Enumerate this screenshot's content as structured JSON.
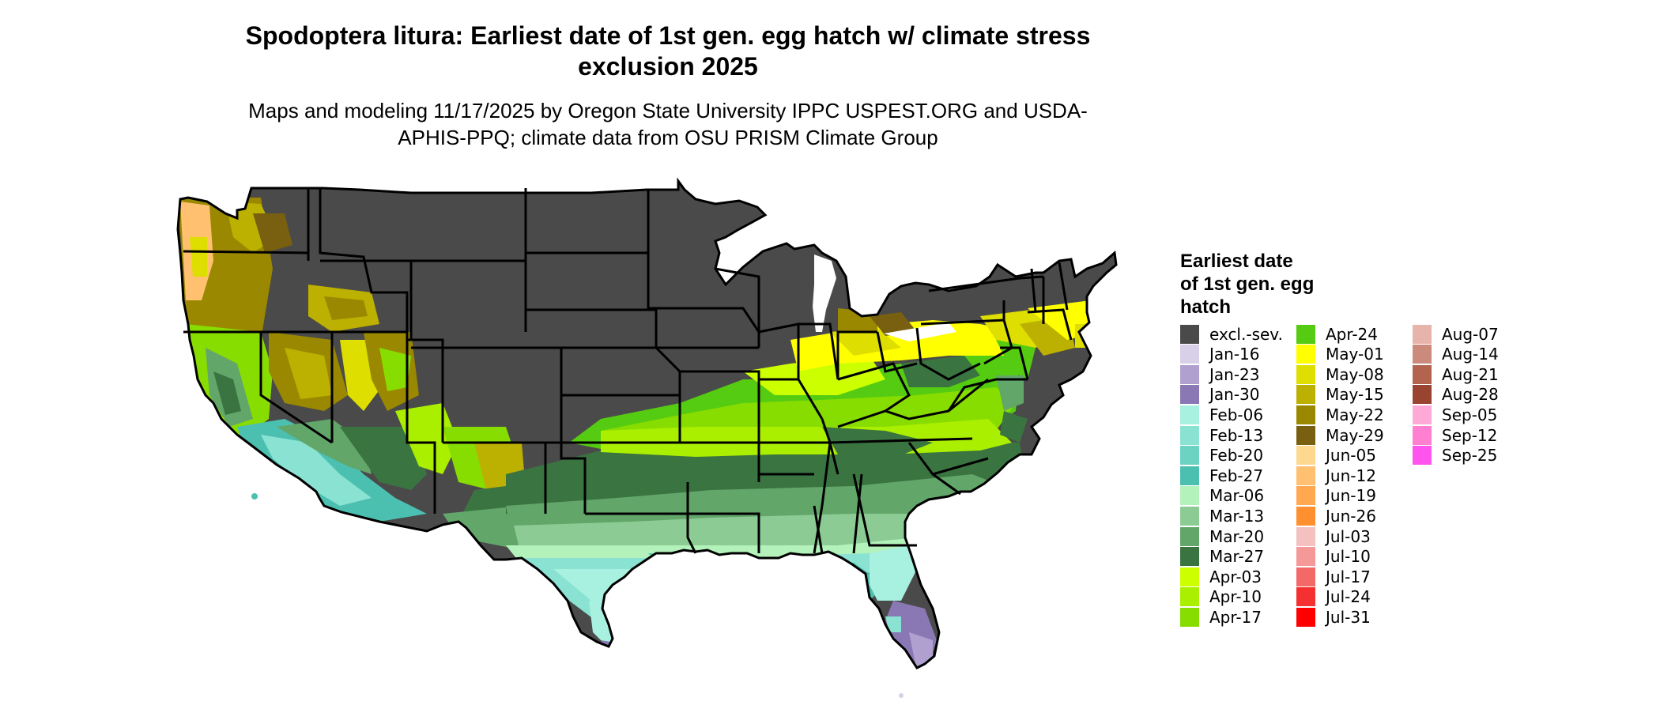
{
  "title": "Spodoptera litura: Earliest date of 1st gen. egg hatch w/ climate stress exclusion 2025",
  "subtitle": "Maps and modeling 11/17/2025 by Oregon State University IPPC USPEST.ORG and USDA-APHIS-PPQ; climate data from OSU PRISM Climate Group",
  "map": {
    "region": "Contiguous United States",
    "colors": {
      "state_border": "#000000",
      "excluded": "#4a4a4a"
    }
  },
  "legend": {
    "title": "Earliest date of 1st gen. egg hatch",
    "items": [
      {
        "label": "excl.-sev.",
        "color": "#4a4a4a"
      },
      {
        "label": "Jan-16",
        "color": "#d8d0e8"
      },
      {
        "label": "Jan-23",
        "color": "#b0a0d0"
      },
      {
        "label": "Jan-30",
        "color": "#8a78b4"
      },
      {
        "label": "Feb-06",
        "color": "#a8f0e0"
      },
      {
        "label": "Feb-13",
        "color": "#8ae2d2"
      },
      {
        "label": "Feb-20",
        "color": "#6cd2c2"
      },
      {
        "label": "Feb-27",
        "color": "#4cc0b0"
      },
      {
        "label": "Mar-06",
        "color": "#b4f2bc"
      },
      {
        "label": "Mar-13",
        "color": "#8ccc94"
      },
      {
        "label": "Mar-20",
        "color": "#62a66a"
      },
      {
        "label": "Mar-27",
        "color": "#3a7440"
      },
      {
        "label": "Apr-03",
        "color": "#ccff00"
      },
      {
        "label": "Apr-10",
        "color": "#aaee00"
      },
      {
        "label": "Apr-17",
        "color": "#88dd00"
      },
      {
        "label": "Apr-24",
        "color": "#55cc11"
      },
      {
        "label": "May-01",
        "color": "#ffff00"
      },
      {
        "label": "May-08",
        "color": "#dede00"
      },
      {
        "label": "May-15",
        "color": "#bcb000"
      },
      {
        "label": "May-22",
        "color": "#9a8800"
      },
      {
        "label": "May-29",
        "color": "#786010"
      },
      {
        "label": "Jun-05",
        "color": "#ffd890"
      },
      {
        "label": "Jun-12",
        "color": "#ffc070"
      },
      {
        "label": "Jun-19",
        "color": "#ffa850"
      },
      {
        "label": "Jun-26",
        "color": "#ff9030"
      },
      {
        "label": "Jul-03",
        "color": "#f4c0c0"
      },
      {
        "label": "Jul-10",
        "color": "#f49898"
      },
      {
        "label": "Jul-17",
        "color": "#f46868"
      },
      {
        "label": "Jul-24",
        "color": "#f43030"
      },
      {
        "label": "Jul-31",
        "color": "#ff0000"
      },
      {
        "label": "Aug-07",
        "color": "#e6b4aa"
      },
      {
        "label": "Aug-14",
        "color": "#cc8a7c"
      },
      {
        "label": "Aug-21",
        "color": "#b2644f"
      },
      {
        "label": "Aug-28",
        "color": "#984430"
      },
      {
        "label": "Sep-05",
        "color": "#ffaad6"
      },
      {
        "label": "Sep-12",
        "color": "#ff80d0"
      },
      {
        "label": "Sep-25",
        "color": "#ff55ee"
      }
    ]
  }
}
